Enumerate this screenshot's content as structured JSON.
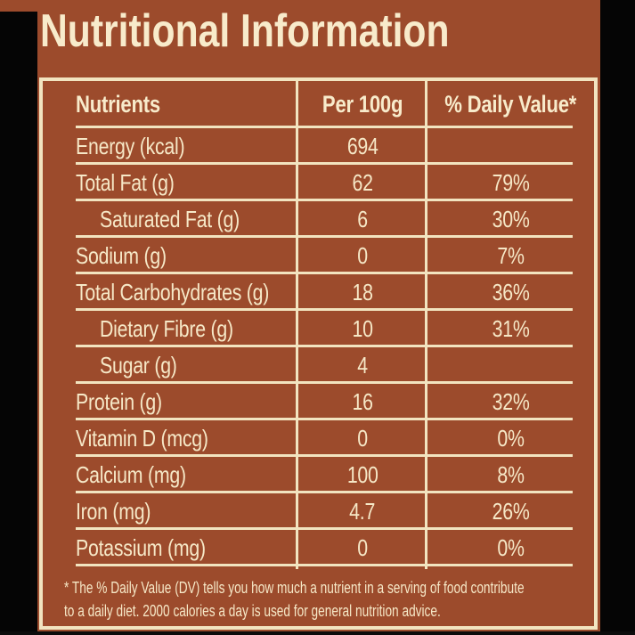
{
  "meta": {
    "window_title": "Nutritional Information"
  },
  "theme": {
    "card_color": "#9C4B2C",
    "frame_color": "#050505",
    "text_color": "#F6E8C7",
    "line_color": "#F2E4C0"
  },
  "header": {
    "title": "Nutritional Information"
  },
  "table": {
    "columns": [
      {
        "key": "nutrient",
        "label": "Nutrients"
      },
      {
        "key": "per_100g",
        "label": "Per 100g"
      },
      {
        "key": "daily_value",
        "label": "% Daily Value*"
      }
    ],
    "rows": [
      {
        "nutrient": "Energy (kcal)",
        "per_100g": "694",
        "daily_value": "",
        "indent": false
      },
      {
        "nutrient": "Total Fat (g)",
        "per_100g": "62",
        "daily_value": "79%",
        "indent": false
      },
      {
        "nutrient": "Saturated Fat (g)",
        "per_100g": "6",
        "daily_value": "30%",
        "indent": true
      },
      {
        "nutrient": "Sodium (g)",
        "per_100g": "0",
        "daily_value": "7%",
        "indent": false
      },
      {
        "nutrient": "Total Carbohydrates (g)",
        "per_100g": "18",
        "daily_value": "36%",
        "indent": false
      },
      {
        "nutrient": "Dietary Fibre (g)",
        "per_100g": "10",
        "daily_value": "31%",
        "indent": true
      },
      {
        "nutrient": "Sugar (g)",
        "per_100g": "4",
        "daily_value": "",
        "indent": true
      },
      {
        "nutrient": "Protein (g)",
        "per_100g": "16",
        "daily_value": "32%",
        "indent": false
      },
      {
        "nutrient": "Vitamin D (mcg)",
        "per_100g": "0",
        "daily_value": "0%",
        "indent": false
      },
      {
        "nutrient": "Calcium (mg)",
        "per_100g": "100",
        "daily_value": "8%",
        "indent": false
      },
      {
        "nutrient": "Iron (mg)",
        "per_100g": "4.7",
        "daily_value": "26%",
        "indent": false
      },
      {
        "nutrient": "Potassium (mg)",
        "per_100g": "0",
        "daily_value": "0%",
        "indent": false
      }
    ]
  },
  "footnote": {
    "lines": [
      "* The % Daily Value (DV) tells you how much a nutrient in a serving of food contribute",
      "to a daily diet. 2000 calories a day is used for general nutrition advice."
    ]
  }
}
